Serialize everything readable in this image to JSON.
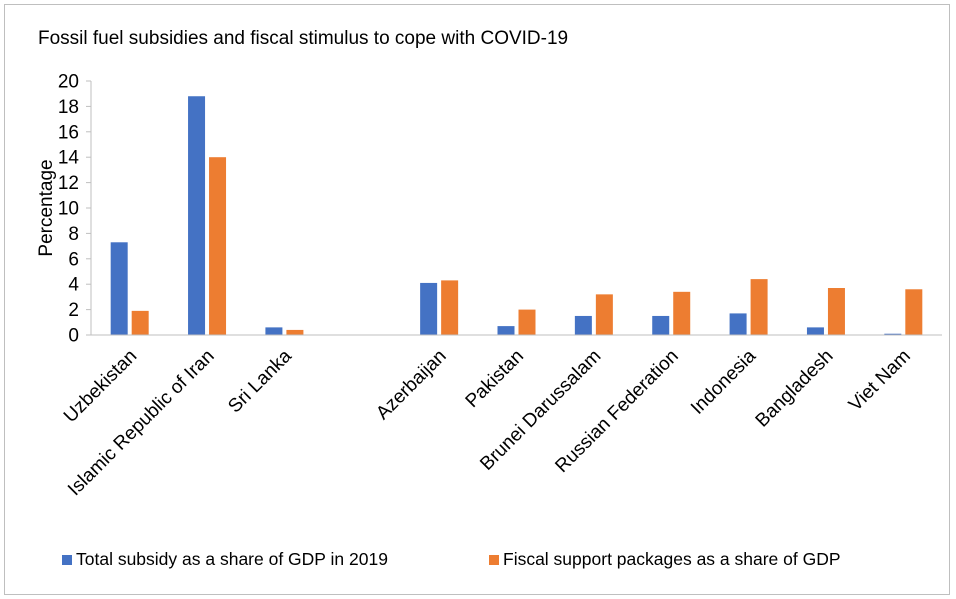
{
  "chart_data": {
    "type": "bar",
    "title": "Fossil fuel subsidies and fiscal stimulus to cope with COVID-19",
    "xlabel": "",
    "ylabel": "Percentage",
    "ylim": [
      0,
      20
    ],
    "yticks": [
      0,
      2,
      4,
      6,
      8,
      10,
      12,
      14,
      16,
      18,
      20
    ],
    "grid": false,
    "legend_position": "bottom",
    "categories": [
      "Uzbekistan",
      "Islamic Republic of Iran",
      "Sri Lanka",
      "",
      "Azerbaijan",
      "Pakistan",
      "Brunei Darussalam",
      "Russian Federation",
      "Indonesia",
      "Bangladesh",
      "Viet Nam"
    ],
    "series": [
      {
        "name": "Total subsidy as a share of GDP in 2019",
        "color": "#4472c4",
        "values": [
          7.3,
          18.8,
          0.6,
          null,
          4.1,
          0.7,
          1.5,
          1.5,
          1.7,
          0.6,
          0.1
        ]
      },
      {
        "name": "Fiscal support packages as a share of GDP",
        "color": "#ed7d31",
        "values": [
          1.9,
          14.0,
          0.4,
          null,
          4.3,
          2.0,
          3.2,
          3.4,
          4.4,
          3.7,
          3.6
        ]
      }
    ]
  }
}
